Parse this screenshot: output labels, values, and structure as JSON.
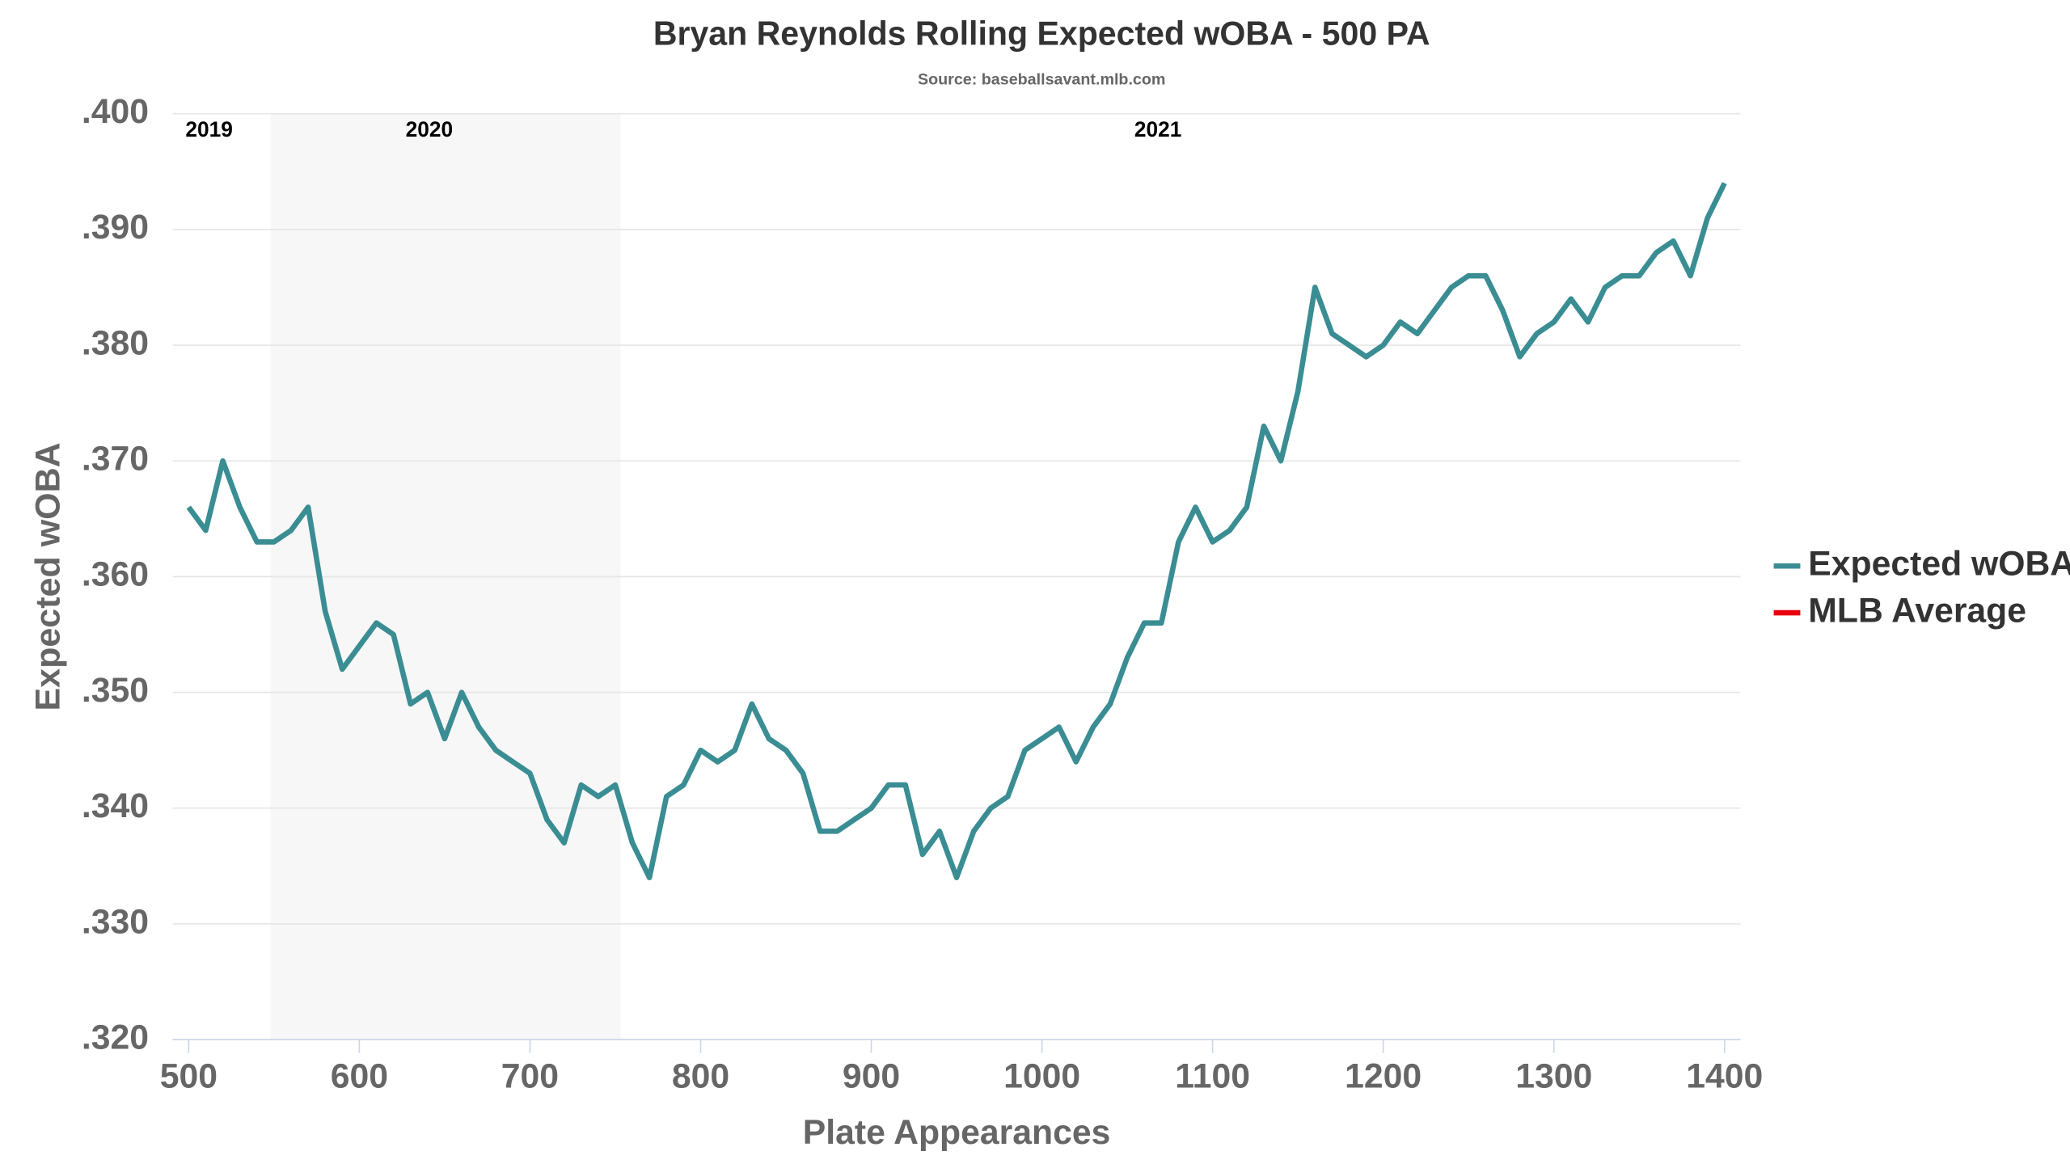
{
  "chart_data": {
    "type": "line",
    "title": "Bryan Reynolds Rolling Expected wOBA - 500 PA",
    "subtitle": "Source: baseballsavant.mlb.com",
    "x_label": "Plate Appearances",
    "y_label": "Expected wOBA",
    "x": [
      500,
      510,
      520,
      530,
      540,
      550,
      560,
      570,
      580,
      590,
      600,
      610,
      620,
      630,
      640,
      650,
      660,
      670,
      680,
      690,
      700,
      710,
      720,
      730,
      740,
      750,
      760,
      770,
      780,
      790,
      800,
      810,
      820,
      830,
      840,
      850,
      860,
      870,
      880,
      890,
      900,
      910,
      920,
      930,
      940,
      950,
      960,
      970,
      980,
      990,
      1000,
      1010,
      1020,
      1030,
      1040,
      1050,
      1060,
      1070,
      1080,
      1090,
      1100,
      1110,
      1120,
      1130,
      1140,
      1150,
      1160,
      1170,
      1180,
      1190,
      1200,
      1210,
      1220,
      1230,
      1240,
      1250,
      1260,
      1270,
      1280,
      1290,
      1300,
      1310,
      1320,
      1330,
      1340,
      1350,
      1360,
      1370,
      1380,
      1390,
      1400
    ],
    "series": [
      {
        "name": "Expected wOBA",
        "color": "#3a8d93",
        "values": [
          0.366,
          0.364,
          0.37,
          0.366,
          0.363,
          0.363,
          0.364,
          0.366,
          0.357,
          0.352,
          0.354,
          0.356,
          0.355,
          0.349,
          0.35,
          0.346,
          0.35,
          0.347,
          0.345,
          0.344,
          0.343,
          0.339,
          0.337,
          0.342,
          0.341,
          0.342,
          0.337,
          0.334,
          0.341,
          0.342,
          0.345,
          0.344,
          0.345,
          0.349,
          0.346,
          0.345,
          0.343,
          0.338,
          0.338,
          0.339,
          0.34,
          0.342,
          0.342,
          0.336,
          0.338,
          0.334,
          0.338,
          0.34,
          0.341,
          0.345,
          0.346,
          0.347,
          0.344,
          0.347,
          0.349,
          0.353,
          0.356,
          0.356,
          0.363,
          0.366,
          0.363,
          0.364,
          0.366,
          0.373,
          0.37,
          0.376,
          0.385,
          0.381,
          0.38,
          0.379,
          0.38,
          0.382,
          0.381,
          0.383,
          0.385,
          0.386,
          0.386,
          0.383,
          0.379,
          0.381,
          0.382,
          0.384,
          0.382,
          0.385,
          0.386,
          0.386,
          0.388,
          0.389,
          0.386,
          0.391,
          0.394
        ]
      }
    ],
    "legend_items": [
      {
        "name": "MLB Average",
        "color": "#e8000b"
      }
    ],
    "legend": "right",
    "shaded_range": [
      548,
      753
    ],
    "annotations": [
      {
        "text": "2019",
        "x": 512
      },
      {
        "text": "2020",
        "x": 641
      },
      {
        "text": "2021",
        "x": 1068
      }
    ],
    "xlim": [
      500,
      1400
    ],
    "xticks": [
      500,
      600,
      700,
      800,
      900,
      1000,
      1100,
      1200,
      1300,
      1400
    ],
    "ylim": [
      0.32,
      0.4
    ],
    "yticks": [
      {
        "value": 0.32,
        "label": ".320"
      },
      {
        "value": 0.33,
        "label": ".330"
      },
      {
        "value": 0.34,
        "label": ".340"
      },
      {
        "value": 0.35,
        "label": ".350"
      },
      {
        "value": 0.36,
        "label": ".360"
      },
      {
        "value": 0.37,
        "label": ".370"
      },
      {
        "value": 0.38,
        "label": ".380"
      },
      {
        "value": 0.39,
        "label": ".390"
      },
      {
        "value": 0.4,
        "label": ".400"
      }
    ],
    "grid": true
  }
}
